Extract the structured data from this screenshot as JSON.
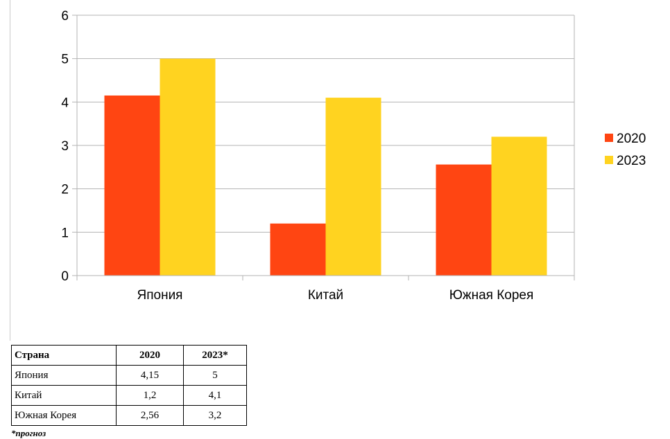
{
  "chart_data": {
    "type": "bar",
    "categories": [
      "Япония",
      "Китай",
      "Южная Корея"
    ],
    "series": [
      {
        "name": "2020",
        "values": [
          4.15,
          1.2,
          2.56
        ],
        "color": "#ff4512"
      },
      {
        "name": "2023",
        "values": [
          5,
          4.1,
          3.2
        ],
        "color": "#ffd320"
      }
    ],
    "ylim": [
      0,
      6
    ],
    "yticks": [
      "0",
      "1",
      "2",
      "3",
      "4",
      "5",
      "6"
    ],
    "grid": true,
    "legend_position": "right",
    "gridline_color": "#b3b3b3"
  },
  "table": {
    "headers": [
      "Страна",
      "2020",
      "2023*"
    ],
    "rows": [
      [
        "Япония",
        "4,15",
        "5"
      ],
      [
        "Китай",
        "1,2",
        "4,1"
      ],
      [
        "Южная Корея",
        "2,56",
        "3,2"
      ]
    ]
  },
  "footnote": "*прогноз"
}
